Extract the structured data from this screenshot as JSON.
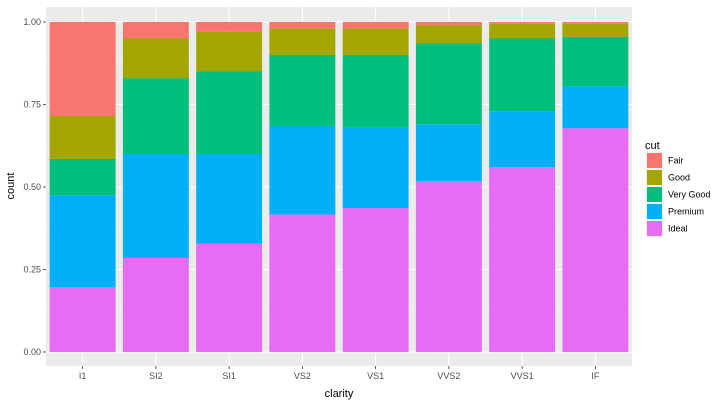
{
  "chart_data": {
    "type": "bar",
    "stacked": true,
    "position": "fill",
    "categories": [
      "I1",
      "SI2",
      "SI1",
      "VS2",
      "VS1",
      "VVS2",
      "VVS1",
      "IF"
    ],
    "series": [
      {
        "name": "Fair",
        "color": "#F8766D",
        "values": [
          0.285,
          0.05,
          0.03,
          0.02,
          0.02,
          0.01,
          0.005,
          0.005
        ]
      },
      {
        "name": "Good",
        "color": "#A3A500",
        "values": [
          0.13,
          0.12,
          0.12,
          0.08,
          0.08,
          0.055,
          0.045,
          0.04
        ]
      },
      {
        "name": "Very Good",
        "color": "#00BF7D",
        "values": [
          0.11,
          0.23,
          0.25,
          0.215,
          0.22,
          0.245,
          0.22,
          0.15
        ]
      },
      {
        "name": "Premium",
        "color": "#00B0F6",
        "values": [
          0.278,
          0.315,
          0.272,
          0.268,
          0.244,
          0.172,
          0.17,
          0.127
        ]
      },
      {
        "name": "Ideal",
        "color": "#E76BF3",
        "values": [
          0.197,
          0.285,
          0.328,
          0.417,
          0.436,
          0.518,
          0.56,
          0.678
        ]
      }
    ],
    "title": "",
    "xlabel": "clarity",
    "ylabel": "count",
    "ylim": [
      0,
      1
    ],
    "yticks": [
      "0.00",
      "0.25",
      "0.50",
      "0.75",
      "1.00"
    ],
    "legend": {
      "title": "cut",
      "placement": "right"
    },
    "grid": true,
    "background": "#EBEBEB"
  }
}
